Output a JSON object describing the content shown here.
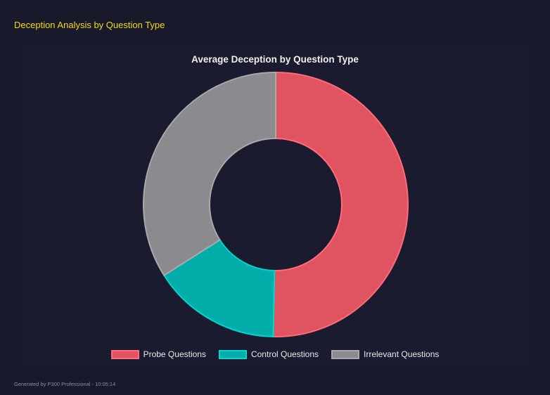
{
  "header": {
    "title": "Deception Analysis by Question Type"
  },
  "footer": {
    "text": "Generated by P300 Professional - 10:05:14"
  },
  "chart_data": {
    "type": "pie",
    "variant": "doughnut",
    "title": "Average Deception by Question Type",
    "categories": [
      "Probe Questions",
      "Control Questions",
      "Irrelevant Questions"
    ],
    "values": [
      50.3,
      15.7,
      34.0
    ],
    "colors": [
      "#e05361",
      "#00ada8",
      "#8b8b8f"
    ],
    "border_colors": [
      "#ff6b78",
      "#00d6cf",
      "#a9a9ad"
    ],
    "legend_position": "bottom"
  }
}
